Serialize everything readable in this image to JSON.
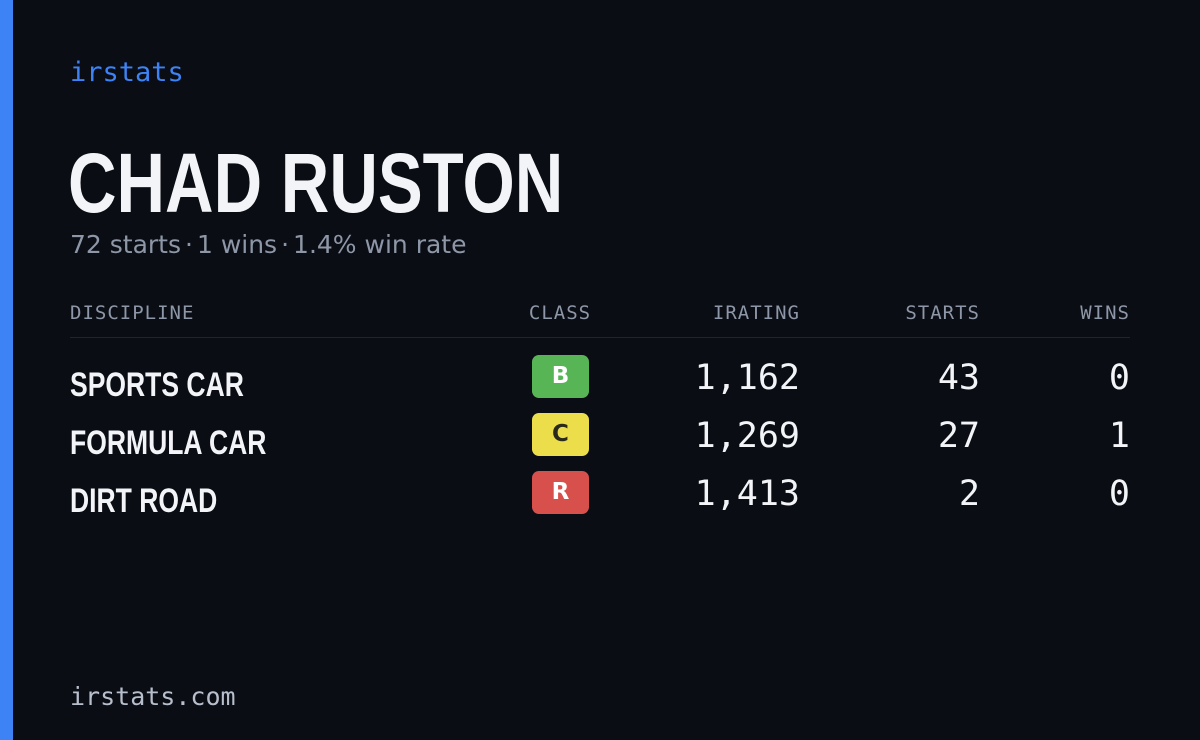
{
  "brand": "irstats",
  "driver": {
    "name": "CHAD RUSTON"
  },
  "summary": {
    "starts": "72 starts",
    "wins": "1 wins",
    "win_rate": "1.4% win rate",
    "separator": "·"
  },
  "table": {
    "headers": {
      "discipline": "DISCIPLINE",
      "class": "CLASS",
      "irating": "IRATING",
      "starts": "STARTS",
      "wins": "WINS"
    },
    "rows": [
      {
        "discipline": "SPORTS CAR",
        "class": "B",
        "class_bg": "#58b555",
        "class_fg": "#ffffff",
        "irating": "1,162",
        "starts": "43",
        "wins": "0"
      },
      {
        "discipline": "FORMULA CAR",
        "class": "C",
        "class_bg": "#ecde4a",
        "class_fg": "#2a2a1a",
        "irating": "1,269",
        "starts": "27",
        "wins": "1"
      },
      {
        "discipline": "DIRT ROAD",
        "class": "R",
        "class_bg": "#d8504c",
        "class_fg": "#ffffff",
        "irating": "1,413",
        "starts": "2",
        "wins": "0"
      }
    ]
  },
  "footer": {
    "url": "irstats.com"
  },
  "colors": {
    "accent": "#3d83f5",
    "background": "#0a0d14",
    "text_primary": "#f2f4f8",
    "text_muted": "#8e97a7"
  }
}
